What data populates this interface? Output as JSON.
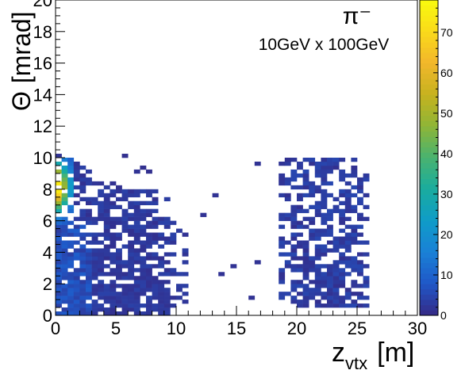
{
  "chart_data": {
    "type": "heatmap",
    "title": "",
    "annotations": {
      "particle": "π⁻",
      "beam": "10GeV x 100GeV"
    },
    "xlabel": {
      "main": "z",
      "sub": "vtx",
      "unit": "[m]"
    },
    "ylabel": {
      "main": "Θ",
      "unit": "[mrad]"
    },
    "xlim": [
      0,
      30
    ],
    "ylim": [
      0,
      20
    ],
    "xticks": [
      "0",
      "5",
      "10",
      "15",
      "20",
      "25",
      "30"
    ],
    "yticks": [
      "0",
      "2",
      "4",
      "6",
      "8",
      "10",
      "12",
      "14",
      "16",
      "18",
      "20"
    ],
    "zlim": [
      0,
      78
    ],
    "zticks": [
      "0",
      "10",
      "20",
      "30",
      "40",
      "50",
      "60",
      "70"
    ],
    "colormap": [
      "#352a87",
      "#1f58c8",
      "#1a81d6",
      "#0f9cc8",
      "#1aac9e",
      "#4ab36f",
      "#8fb537",
      "#c7b21f",
      "#f2b72b",
      "#fadb1a",
      "#f9fb0e"
    ],
    "bin_width": {
      "x": 0.5,
      "y": 0.25
    },
    "regions": [
      {
        "label": "peak near z=0",
        "x": [
          0,
          1.0
        ],
        "y": [
          6.0,
          10.0
        ],
        "z_max": 75
      },
      {
        "label": "spread z 0-11",
        "x": [
          0,
          11
        ],
        "y": [
          0,
          10.25
        ],
        "z_typical": 3
      },
      {
        "label": "far cluster",
        "x": [
          18.5,
          26
        ],
        "y": [
          0.5,
          10.0
        ],
        "z_typical": 2
      }
    ]
  }
}
